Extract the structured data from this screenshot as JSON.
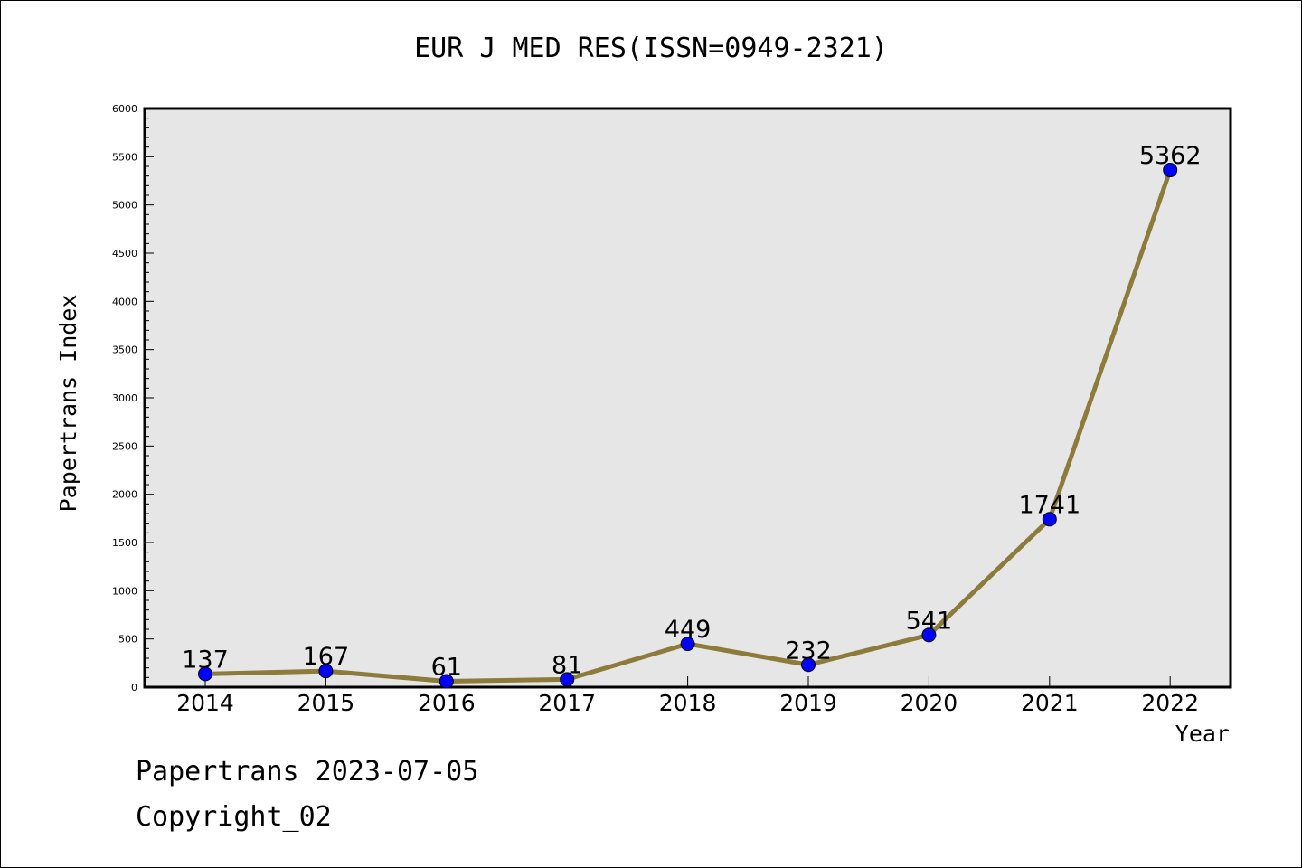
{
  "page": {
    "title": "EUR J MED RES(ISSN=0949-2321)",
    "footer_line1": "Papertrans 2023-07-05",
    "footer_line2": "Copyright_02"
  },
  "colors": {
    "plot_background": "#e6e6e6",
    "line": "#8c7b3a",
    "marker": "#0000ff",
    "axis": "#000000"
  },
  "chart_data": {
    "type": "line",
    "title": "EUR J MED RES(ISSN=0949-2321)",
    "xlabel": "Year",
    "ylabel": "Papertrans Index",
    "categories": [
      "2014",
      "2015",
      "2016",
      "2017",
      "2018",
      "2019",
      "2020",
      "2021",
      "2022"
    ],
    "series": [
      {
        "values": [
          137,
          167,
          61,
          81,
          449,
          232,
          541,
          1741,
          5362
        ]
      }
    ],
    "data_labels": [
      "137",
      "167",
      "61",
      "81",
      "449",
      "232",
      "541",
      "1741",
      "5362"
    ],
    "ylim": [
      0,
      6000
    ],
    "yticks": [
      0,
      500,
      1000,
      1500,
      2000,
      2500,
      3000,
      3500,
      4000,
      4500,
      5000,
      5500,
      6000
    ],
    "grid": false,
    "legend": "none"
  }
}
